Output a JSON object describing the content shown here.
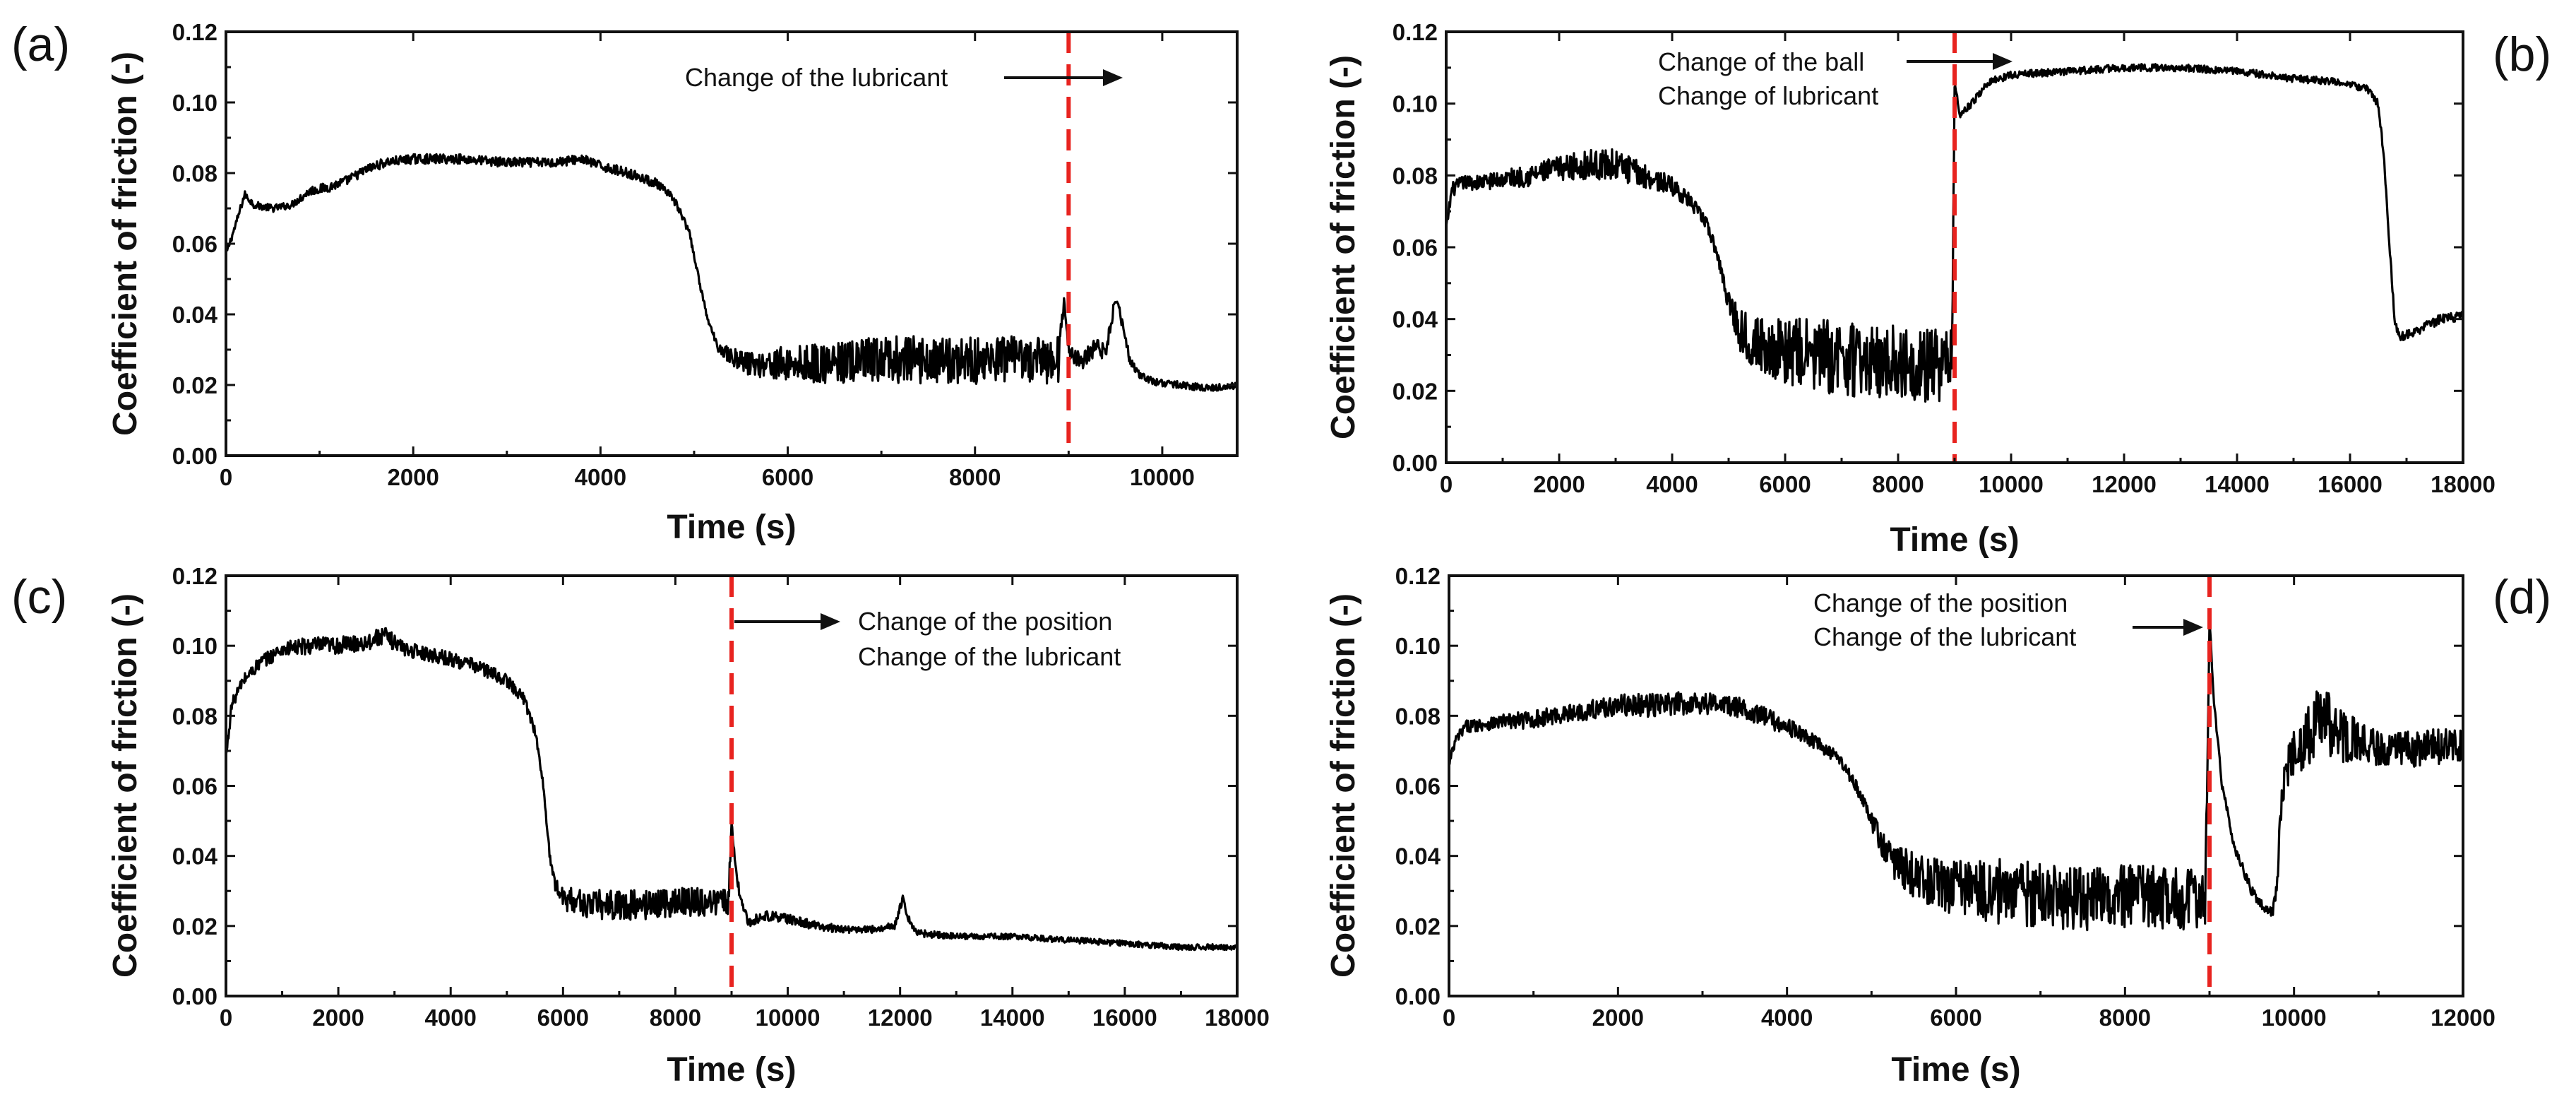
{
  "chart_data": [
    {
      "panel": "(a)",
      "type": "line",
      "xlabel": "Time (s)",
      "ylabel": "Coefficient of friction (-)",
      "xlim": [
        0,
        10800
      ],
      "ylim": [
        0,
        0.12
      ],
      "xticks": [
        0,
        2000,
        4000,
        6000,
        8000,
        10000
      ],
      "yticks": [
        0.0,
        0.02,
        0.04,
        0.06,
        0.08,
        0.1,
        0.12
      ],
      "xtick_labels": [
        "0",
        "2000",
        "4000",
        "6000",
        "8000",
        "10000"
      ],
      "ytick_labels": [
        "0.00",
        "0.02",
        "0.04",
        "0.06",
        "0.08",
        "0.10",
        "0.12"
      ],
      "grid": false,
      "marker_x": 9000,
      "annotations": [
        "Change of the lubricant"
      ],
      "series": [
        {
          "name": "Coefficient of friction",
          "x": [
            0,
            100,
            200,
            300,
            500,
            700,
            900,
            1100,
            1300,
            1500,
            1700,
            2000,
            2500,
            3000,
            3500,
            3800,
            4000,
            4300,
            4600,
            4800,
            4950,
            5050,
            5150,
            5250,
            5400,
            5600,
            6000,
            6500,
            7000,
            7500,
            8000,
            8500,
            8900,
            8950,
            9000,
            9050,
            9150,
            9300,
            9400,
            9500,
            9550,
            9600,
            9650,
            9750,
            9900,
            10200,
            10500,
            10800
          ],
          "y": [
            0.057,
            0.065,
            0.074,
            0.071,
            0.07,
            0.071,
            0.075,
            0.076,
            0.078,
            0.081,
            0.083,
            0.084,
            0.084,
            0.083,
            0.083,
            0.084,
            0.082,
            0.08,
            0.077,
            0.072,
            0.063,
            0.05,
            0.038,
            0.031,
            0.028,
            0.026,
            0.026,
            0.026,
            0.027,
            0.027,
            0.027,
            0.027,
            0.027,
            0.045,
            0.03,
            0.028,
            0.027,
            0.031,
            0.029,
            0.045,
            0.04,
            0.035,
            0.027,
            0.023,
            0.021,
            0.02,
            0.019,
            0.02
          ],
          "noise": [
            0.0006,
            0.0006,
            0.0006,
            0.0006,
            0.0006,
            0.0006,
            0.0008,
            0.0008,
            0.0008,
            0.0008,
            0.0008,
            0.0008,
            0.0008,
            0.0008,
            0.0008,
            0.0008,
            0.0008,
            0.0008,
            0.0008,
            0.0008,
            0.0005,
            0.0005,
            0.0005,
            0.0008,
            0.0015,
            0.002,
            0.003,
            0.0035,
            0.004,
            0.004,
            0.004,
            0.004,
            0.004,
            0.001,
            0.001,
            0.0015,
            0.0015,
            0.0015,
            0.0015,
            0.001,
            0.001,
            0.001,
            0.0008,
            0.0006,
            0.0006,
            0.0006,
            0.0006,
            0.0006
          ]
        }
      ]
    },
    {
      "panel": "(b)",
      "type": "line",
      "xlabel": "Time (s)",
      "ylabel": "Coefficient of friction (-)",
      "xlim": [
        0,
        18000
      ],
      "ylim": [
        0,
        0.12
      ],
      "xticks": [
        0,
        2000,
        4000,
        6000,
        8000,
        10000,
        12000,
        14000,
        16000,
        18000
      ],
      "yticks": [
        0.0,
        0.02,
        0.04,
        0.06,
        0.08,
        0.1,
        0.12
      ],
      "xtick_labels": [
        "0",
        "2000",
        "4000",
        "6000",
        "8000",
        "10000",
        "12000",
        "14000",
        "16000",
        "18000"
      ],
      "ytick_labels": [
        "0.00",
        "0.02",
        "0.04",
        "0.06",
        "0.08",
        "0.10",
        "0.12"
      ],
      "grid": false,
      "marker_x": 9000,
      "annotations": [
        "Change of the ball",
        "Change of lubricant"
      ],
      "series": [
        {
          "name": "Coefficient of friction",
          "x": [
            0,
            100,
            300,
            600,
            1000,
            1500,
            2000,
            2500,
            3000,
            3500,
            4000,
            4300,
            4600,
            4800,
            5000,
            5200,
            5500,
            6000,
            6500,
            7000,
            7500,
            8000,
            8500,
            8950,
            9000,
            9100,
            9300,
            9600,
            10000,
            11000,
            12000,
            13000,
            14000,
            15000,
            15800,
            16300,
            16500,
            16600,
            16700,
            16800,
            16900,
            17200,
            17600,
            18000
          ],
          "y": [
            0.065,
            0.076,
            0.078,
            0.078,
            0.079,
            0.08,
            0.082,
            0.083,
            0.083,
            0.08,
            0.077,
            0.073,
            0.067,
            0.058,
            0.045,
            0.037,
            0.033,
            0.031,
            0.03,
            0.029,
            0.028,
            0.028,
            0.027,
            0.027,
            0.105,
            0.097,
            0.1,
            0.106,
            0.108,
            0.109,
            0.11,
            0.11,
            0.109,
            0.107,
            0.106,
            0.104,
            0.1,
            0.085,
            0.06,
            0.038,
            0.035,
            0.037,
            0.04,
            0.041
          ],
          "noise": [
            0.001,
            0.0012,
            0.0012,
            0.0012,
            0.0015,
            0.0018,
            0.002,
            0.0025,
            0.0025,
            0.002,
            0.0015,
            0.0012,
            0.001,
            0.001,
            0.002,
            0.0035,
            0.0045,
            0.0055,
            0.006,
            0.006,
            0.006,
            0.006,
            0.006,
            0.006,
            0.0006,
            0.0006,
            0.0006,
            0.0006,
            0.0006,
            0.0006,
            0.0006,
            0.0006,
            0.0006,
            0.0006,
            0.0006,
            0.0006,
            0.0006,
            0.0006,
            0.0006,
            0.0008,
            0.0008,
            0.0008,
            0.0008,
            0.0008
          ]
        }
      ]
    },
    {
      "panel": "(c)",
      "type": "line",
      "xlabel": "Time (s)",
      "ylabel": "Coefficient of friction (-)",
      "xlim": [
        0,
        18000
      ],
      "ylim": [
        0,
        0.12
      ],
      "xticks": [
        0,
        2000,
        4000,
        6000,
        8000,
        10000,
        12000,
        14000,
        16000,
        18000
      ],
      "yticks": [
        0.0,
        0.02,
        0.04,
        0.06,
        0.08,
        0.1,
        0.12
      ],
      "xtick_labels": [
        "0",
        "2000",
        "4000",
        "6000",
        "8000",
        "10000",
        "12000",
        "14000",
        "16000",
        "18000"
      ],
      "ytick_labels": [
        "0.00",
        "0.02",
        "0.04",
        "0.06",
        "0.08",
        "0.10",
        "0.12"
      ],
      "grid": false,
      "marker_x": 9000,
      "annotations": [
        "Change of the position",
        "Change of the lubricant"
      ],
      "series": [
        {
          "name": "Coefficient of friction",
          "x": [
            0,
            100,
            300,
            600,
            1000,
            1500,
            2000,
            2500,
            2800,
            3200,
            3800,
            4500,
            5000,
            5300,
            5500,
            5650,
            5750,
            5850,
            6000,
            6500,
            7000,
            7500,
            8000,
            8500,
            8950,
            9000,
            9050,
            9150,
            9300,
            9600,
            10000,
            10500,
            11000,
            11500,
            11900,
            12050,
            12150,
            12300,
            13000,
            14000,
            15000,
            16000,
            17000,
            18000
          ],
          "y": [
            0.068,
            0.083,
            0.09,
            0.095,
            0.099,
            0.1,
            0.1,
            0.101,
            0.103,
            0.099,
            0.097,
            0.094,
            0.09,
            0.085,
            0.076,
            0.06,
            0.042,
            0.032,
            0.028,
            0.026,
            0.026,
            0.026,
            0.027,
            0.027,
            0.027,
            0.051,
            0.04,
            0.028,
            0.021,
            0.023,
            0.022,
            0.02,
            0.019,
            0.019,
            0.02,
            0.028,
            0.022,
            0.018,
            0.017,
            0.017,
            0.016,
            0.015,
            0.014,
            0.014
          ],
          "noise": [
            0.001,
            0.001,
            0.001,
            0.0012,
            0.0012,
            0.0015,
            0.0015,
            0.0015,
            0.0015,
            0.0012,
            0.0012,
            0.0012,
            0.001,
            0.001,
            0.001,
            0.0008,
            0.0008,
            0.001,
            0.002,
            0.0025,
            0.0025,
            0.0025,
            0.0025,
            0.0025,
            0.0025,
            0.001,
            0.001,
            0.0008,
            0.0008,
            0.0008,
            0.0008,
            0.0008,
            0.0006,
            0.0006,
            0.0006,
            0.0006,
            0.0006,
            0.0006,
            0.0005,
            0.0005,
            0.0005,
            0.0005,
            0.0005,
            0.0005
          ]
        }
      ]
    },
    {
      "panel": "(d)",
      "type": "line",
      "xlabel": "Time (s)",
      "ylabel": "Coefficient of friction (-)",
      "xlim": [
        0,
        12000
      ],
      "ylim": [
        0,
        0.12
      ],
      "xticks": [
        0,
        2000,
        4000,
        6000,
        8000,
        10000,
        12000
      ],
      "yticks": [
        0.0,
        0.02,
        0.04,
        0.06,
        0.08,
        0.1,
        0.12
      ],
      "xtick_labels": [
        "0",
        "2000",
        "4000",
        "6000",
        "8000",
        "10000",
        "12000"
      ],
      "ytick_labels": [
        "0.00",
        "0.02",
        "0.04",
        "0.06",
        "0.08",
        "0.10",
        "0.12"
      ],
      "grid": false,
      "marker_x": 9000,
      "annotations": [
        "Change of the position",
        "Change of the lubricant"
      ],
      "series": [
        {
          "name": "Coefficient of friction",
          "x": [
            0,
            80,
            200,
            500,
            1000,
            1500,
            2000,
            2500,
            3000,
            3500,
            4000,
            4300,
            4600,
            4800,
            5000,
            5200,
            5500,
            6000,
            6500,
            7000,
            7500,
            8000,
            8500,
            8950,
            9000,
            9050,
            9150,
            9300,
            9500,
            9650,
            9750,
            9800,
            9850,
            9950,
            10100,
            10300,
            10500,
            10800,
            11200,
            11600,
            12000
          ],
          "y": [
            0.066,
            0.073,
            0.077,
            0.078,
            0.079,
            0.081,
            0.083,
            0.083,
            0.084,
            0.082,
            0.077,
            0.073,
            0.068,
            0.061,
            0.05,
            0.04,
            0.034,
            0.031,
            0.03,
            0.029,
            0.028,
            0.028,
            0.028,
            0.027,
            0.108,
            0.085,
            0.06,
            0.042,
            0.03,
            0.025,
            0.024,
            0.032,
            0.055,
            0.068,
            0.072,
            0.08,
            0.075,
            0.072,
            0.07,
            0.071,
            0.072
          ],
          "noise": [
            0.001,
            0.001,
            0.001,
            0.0012,
            0.0015,
            0.0015,
            0.0018,
            0.002,
            0.002,
            0.0018,
            0.0015,
            0.0012,
            0.001,
            0.001,
            0.0015,
            0.003,
            0.004,
            0.005,
            0.0055,
            0.0055,
            0.0055,
            0.0055,
            0.0055,
            0.0055,
            0.0008,
            0.0008,
            0.0008,
            0.0008,
            0.0008,
            0.0008,
            0.0008,
            0.0015,
            0.003,
            0.004,
            0.005,
            0.006,
            0.005,
            0.0035,
            0.003,
            0.003,
            0.003
          ]
        }
      ]
    }
  ]
}
